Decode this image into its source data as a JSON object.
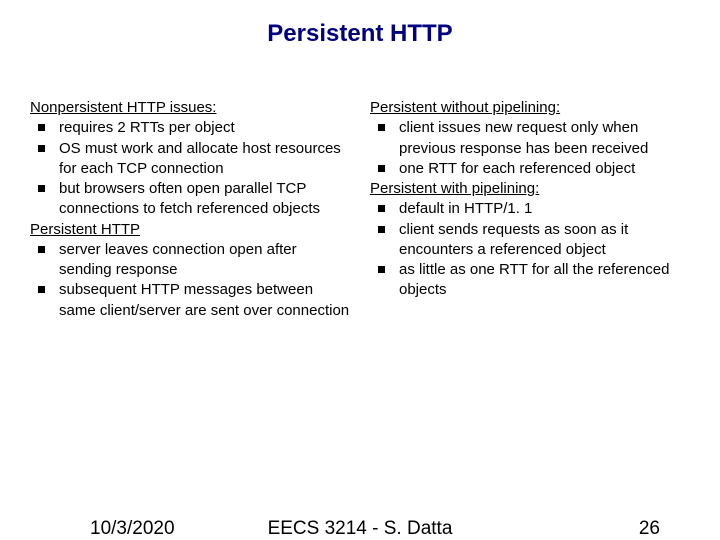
{
  "title": "Persistent HTTP",
  "title_color": "#000080",
  "title_fontsize": 24,
  "body_fontsize": 15,
  "footer_fontsize": 19,
  "bullet_color": "#000000",
  "background_color": "#ffffff",
  "left_column": {
    "sections": [
      {
        "header": "Nonpersistent HTTP issues:",
        "bullets": [
          "requires 2 RTTs per object",
          "OS must work and allocate host resources for each TCP connection",
          "but browsers often open parallel TCP connections to fetch referenced objects"
        ]
      },
      {
        "header": "Persistent  HTTP",
        "bullets": [
          "server leaves connection open after sending response",
          "subsequent HTTP messages between same client/server are sent over connection"
        ]
      }
    ]
  },
  "right_column": {
    "sections": [
      {
        "header": "Persistent without pipelining:",
        "bullets": [
          "client issues new request only when previous response has been received",
          "one RTT for each referenced object"
        ]
      },
      {
        "header": "Persistent with pipelining:",
        "bullets": [
          "default in HTTP/1. 1",
          "client sends requests as soon as it encounters a referenced object",
          "as little as one RTT for all the referenced objects"
        ]
      }
    ]
  },
  "footer": {
    "date": "10/3/2020",
    "course": "EECS 3214 - S. Datta",
    "page": "26"
  }
}
